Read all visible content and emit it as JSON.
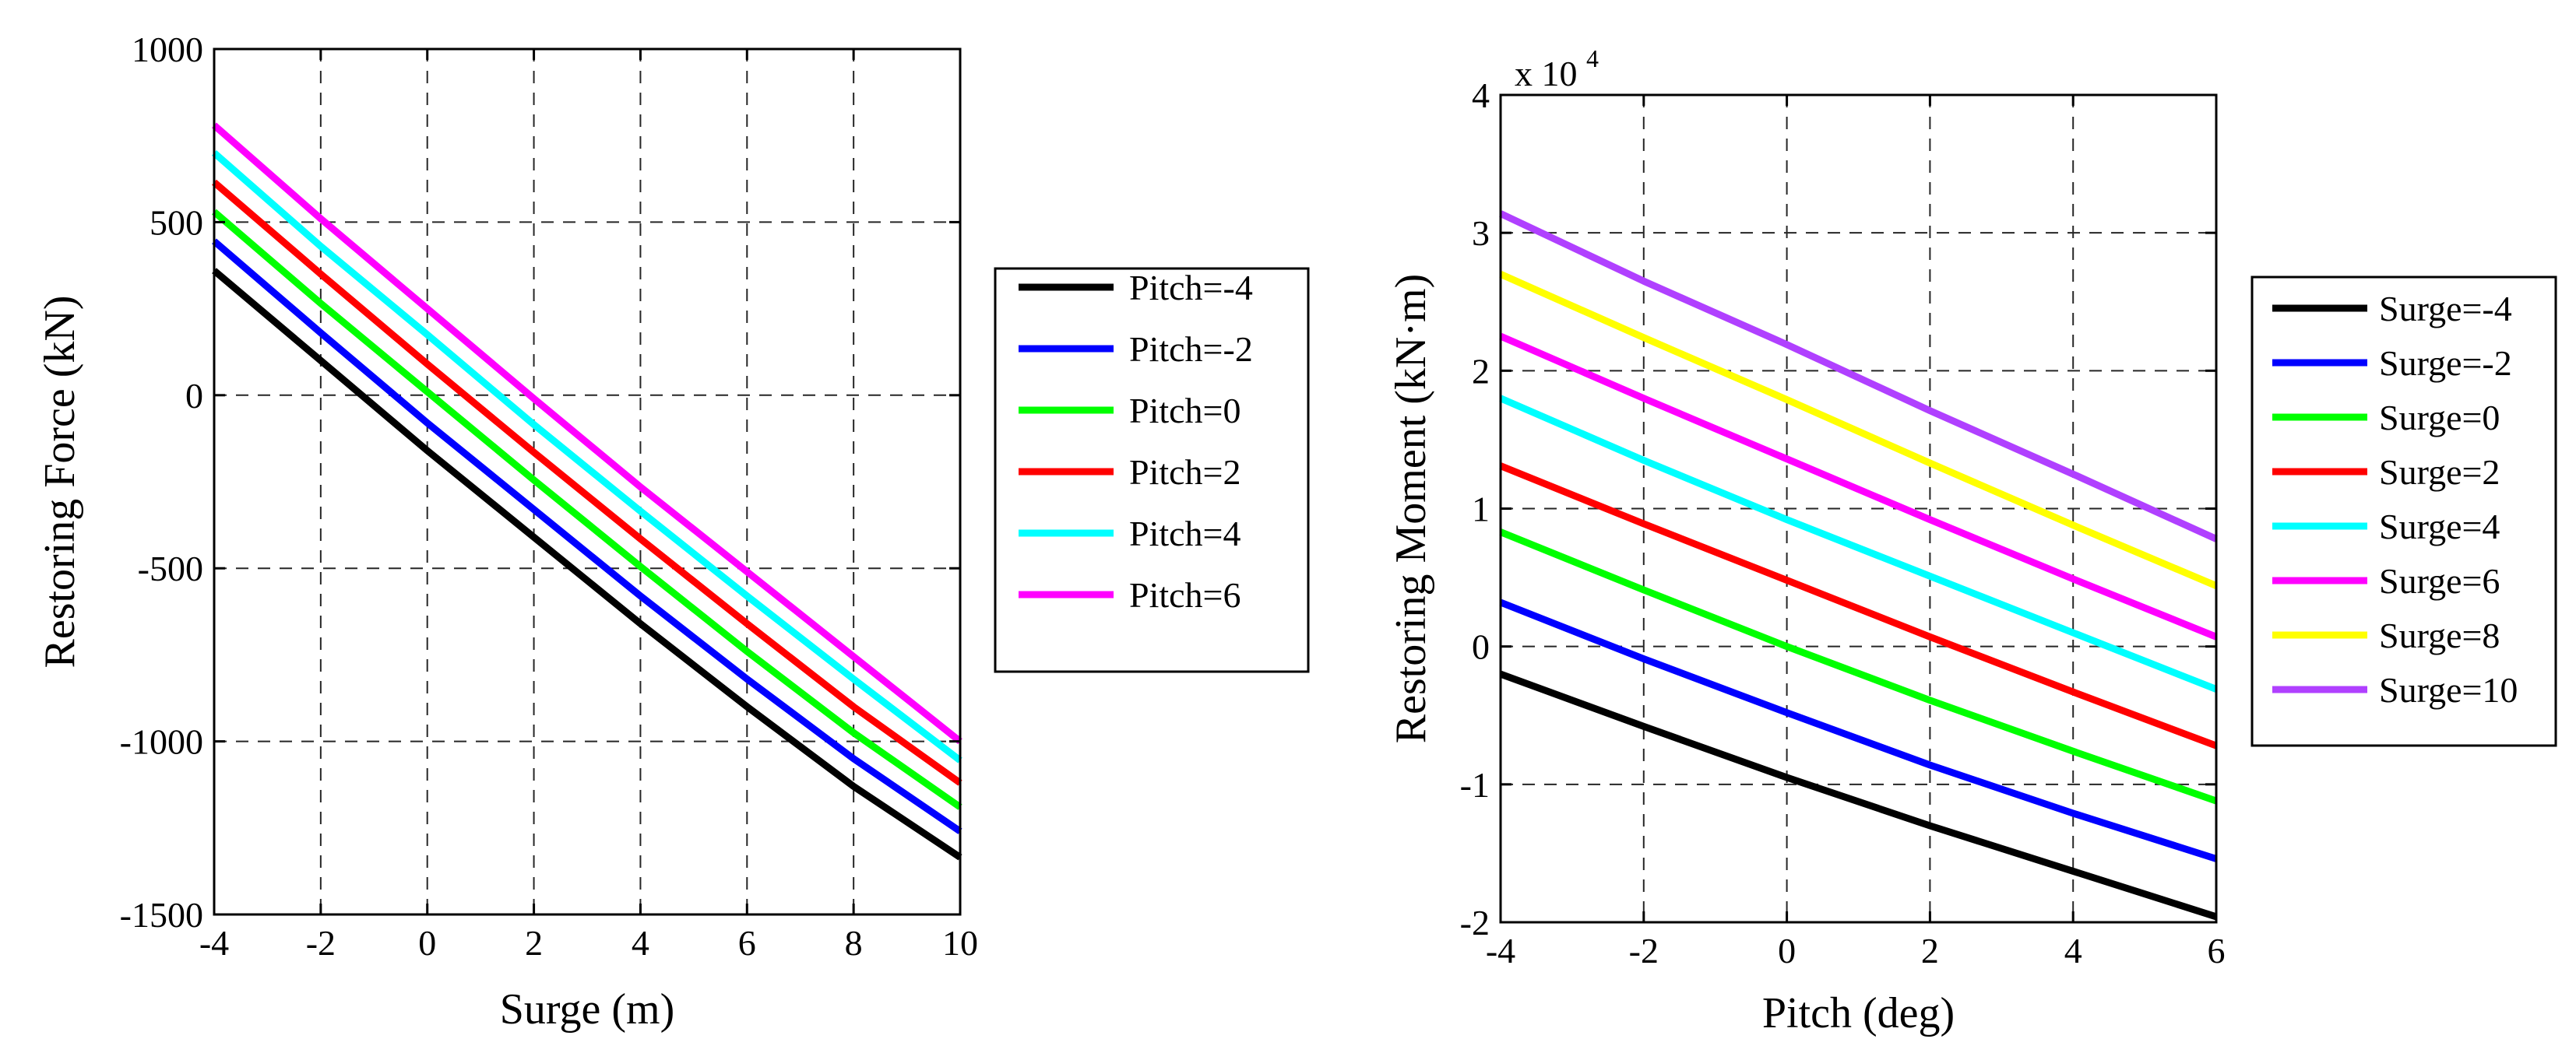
{
  "chart_data": [
    {
      "type": "line",
      "xlabel": "Surge (m)",
      "ylabel": "Restoring Force (kN)",
      "xlim": [
        -4,
        10
      ],
      "ylim": [
        -1500,
        1000
      ],
      "xticks": [
        -4,
        -2,
        0,
        2,
        4,
        6,
        8,
        10
      ],
      "yticks": [
        -1500,
        -1000,
        -500,
        0,
        500,
        1000
      ],
      "xtick_labels": [
        "-4",
        "-2",
        "0",
        "2",
        "4",
        "6",
        "8",
        "10"
      ],
      "ytick_labels": [
        "-1500",
        "-1000",
        "-500",
        "0",
        "500",
        "1000"
      ],
      "grid": true,
      "legend_position": "outside-right",
      "x": [
        -4,
        -2,
        0,
        2,
        4,
        6,
        8,
        10
      ],
      "series": [
        {
          "name": "Pitch=-4",
          "color": "#000000",
          "values": [
            360,
            100,
            -160,
            -410,
            -660,
            -900,
            -1130,
            -1335
          ]
        },
        {
          "name": "Pitch=-2",
          "color": "#0000ff",
          "values": [
            445,
            180,
            -80,
            -330,
            -580,
            -820,
            -1050,
            -1260
          ]
        },
        {
          "name": "Pitch=0",
          "color": "#00ff00",
          "values": [
            530,
            265,
            10,
            -245,
            -495,
            -740,
            -975,
            -1190
          ]
        },
        {
          "name": "Pitch=2",
          "color": "#ff0000",
          "values": [
            615,
            350,
            90,
            -165,
            -415,
            -660,
            -900,
            -1120
          ]
        },
        {
          "name": "Pitch=4",
          "color": "#00ffff",
          "values": [
            700,
            430,
            175,
            -85,
            -335,
            -580,
            -820,
            -1055
          ]
        },
        {
          "name": "Pitch=6",
          "color": "#ff00ff",
          "values": [
            780,
            510,
            250,
            -10,
            -265,
            -510,
            -755,
            -1000
          ]
        }
      ]
    },
    {
      "type": "line",
      "xlabel": "Pitch (deg)",
      "ylabel": "Restoring Moment (kN·m)",
      "y_multiplier_base": "x 10",
      "y_multiplier_exponent": "4",
      "xlim": [
        -4,
        6
      ],
      "ylim": [
        -2,
        4
      ],
      "xticks": [
        -4,
        -2,
        0,
        2,
        4,
        6
      ],
      "yticks": [
        -2,
        -1,
        0,
        1,
        2,
        3,
        4
      ],
      "xtick_labels": [
        "-4",
        "-2",
        "0",
        "2",
        "4",
        "6"
      ],
      "ytick_labels": [
        "-2",
        "-1",
        "0",
        "1",
        "2",
        "3",
        "4"
      ],
      "grid": true,
      "legend_position": "outside-right",
      "x": [
        -4,
        -2,
        0,
        2,
        4,
        6
      ],
      "series": [
        {
          "name": "Surge=-4",
          "color": "#000000",
          "values": [
            -0.2,
            -0.58,
            -0.95,
            -1.3,
            -1.63,
            -1.96
          ]
        },
        {
          "name": "Surge=-2",
          "color": "#0000ff",
          "values": [
            0.32,
            -0.09,
            -0.48,
            -0.86,
            -1.21,
            -1.54
          ]
        },
        {
          "name": "Surge=0",
          "color": "#00ff00",
          "values": [
            0.83,
            0.41,
            0.0,
            -0.39,
            -0.76,
            -1.12
          ]
        },
        {
          "name": "Surge=2",
          "color": "#ff0000",
          "values": [
            1.31,
            0.89,
            0.48,
            0.07,
            -0.33,
            -0.72
          ]
        },
        {
          "name": "Surge=4",
          "color": "#00ffff",
          "values": [
            1.8,
            1.35,
            0.92,
            0.51,
            0.1,
            -0.31
          ]
        },
        {
          "name": "Surge=6",
          "color": "#ff00ff",
          "values": [
            2.25,
            1.8,
            1.36,
            0.92,
            0.49,
            0.07
          ]
        },
        {
          "name": "Surge=8",
          "color": "#ffff00",
          "values": [
            2.7,
            2.24,
            1.79,
            1.33,
            0.88,
            0.44
          ]
        },
        {
          "name": "Surge=10",
          "color": "#b040ff",
          "values": [
            3.14,
            2.65,
            2.19,
            1.71,
            1.25,
            0.78
          ]
        }
      ]
    }
  ]
}
